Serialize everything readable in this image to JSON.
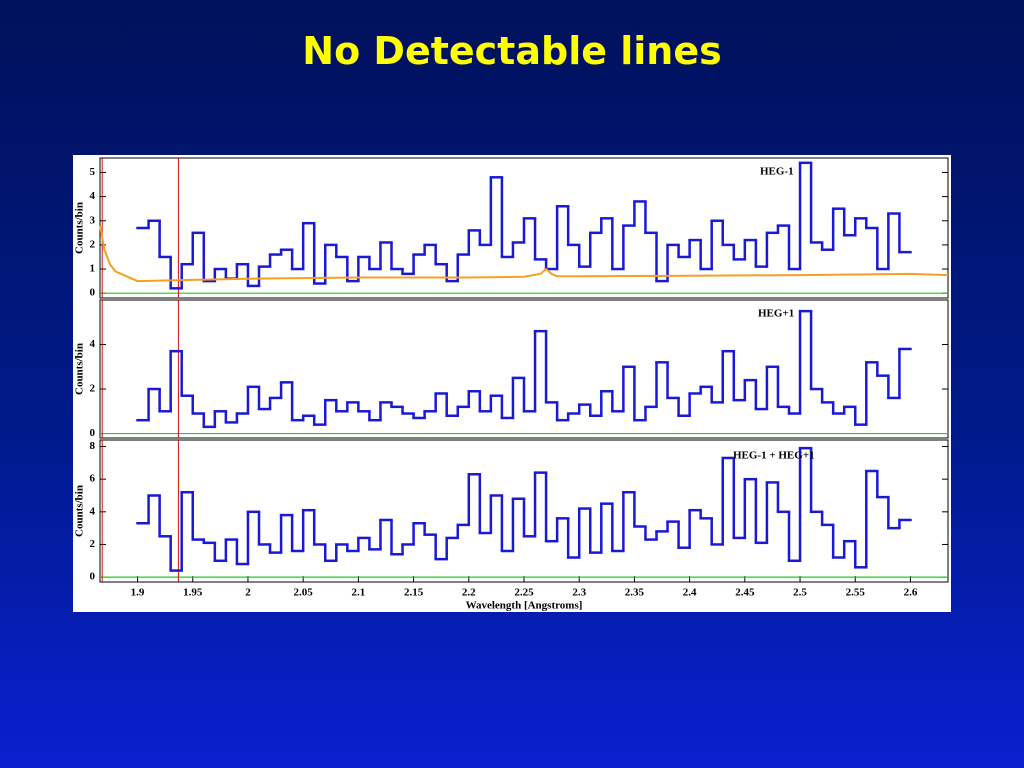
{
  "title": "No Detectable lines",
  "chart_data": [
    {
      "type": "histogram",
      "annotation": "HEG-1",
      "ylabel": "Counts/bin",
      "color": "#1a1ad6",
      "bins": [
        1.9,
        1.91,
        1.92,
        1.93,
        1.94,
        1.95,
        1.96,
        1.97,
        1.98,
        1.99,
        2,
        2.01,
        2.02,
        2.03,
        2.04,
        2.05,
        2.06,
        2.07,
        2.08,
        2.09,
        2.1,
        2.11,
        2.12,
        2.13,
        2.14,
        2.15,
        2.16,
        2.17,
        2.18,
        2.19,
        2.2,
        2.21,
        2.22,
        2.23,
        2.24,
        2.25,
        2.26,
        2.27,
        2.28,
        2.29,
        2.3,
        2.31,
        2.32,
        2.33,
        2.34,
        2.35,
        2.36,
        2.37,
        2.38,
        2.39,
        2.4,
        2.41,
        2.42,
        2.43,
        2.44,
        2.45,
        2.46,
        2.47,
        2.48,
        2.49,
        2.5,
        2.51,
        2.52,
        2.53,
        2.54,
        2.55,
        2.56,
        2.57,
        2.58,
        2.59,
        2.6
      ],
      "values": [
        2.7,
        3.0,
        1.5,
        0.2,
        1.2,
        2.5,
        0.5,
        1.0,
        0.6,
        1.2,
        0.3,
        1.1,
        1.6,
        1.8,
        1.0,
        2.9,
        0.4,
        2.0,
        1.5,
        0.5,
        1.5,
        1.0,
        2.1,
        1.0,
        0.8,
        1.6,
        2.0,
        1.2,
        0.5,
        1.6,
        2.6,
        2.0,
        4.8,
        1.5,
        2.1,
        3.1,
        1.4,
        1.0,
        3.6,
        2.0,
        1.1,
        2.5,
        3.1,
        1.0,
        2.8,
        3.8,
        2.5,
        0.5,
        2.0,
        1.5,
        2.2,
        1.0,
        3.0,
        2.0,
        1.4,
        2.2,
        1.1,
        2.5,
        2.8,
        1.0,
        5.4,
        2.1,
        1.8,
        3.5,
        2.4,
        3.1,
        2.7,
        1.0,
        3.3,
        1.7
      ],
      "model": {
        "color": "#f5a020",
        "x": [
          1.866,
          1.87,
          1.875,
          1.88,
          1.89,
          1.9,
          1.95,
          2,
          2.1,
          2.2,
          2.25,
          2.265,
          2.27,
          2.275,
          2.28,
          2.3,
          2.4,
          2.5,
          2.6,
          2.634
        ],
        "values": [
          2.8,
          1.8,
          1.2,
          0.9,
          0.7,
          0.5,
          0.55,
          0.6,
          0.65,
          0.65,
          0.68,
          0.8,
          1.0,
          0.8,
          0.7,
          0.7,
          0.72,
          0.75,
          0.8,
          0.75
        ]
      },
      "vlines": {
        "color": "#d01010",
        "x": [
          1.868,
          1.937
        ]
      },
      "xlim": [
        1.866,
        2.634
      ],
      "ylim": [
        -0.2,
        5.6
      ],
      "yticks": [
        0,
        1,
        2,
        3,
        4,
        5
      ]
    },
    {
      "type": "histogram",
      "annotation": "HEG+1",
      "ylabel": "Counts/bin",
      "color": "#1a1ad6",
      "bins": [
        1.9,
        1.91,
        1.92,
        1.93,
        1.94,
        1.95,
        1.96,
        1.97,
        1.98,
        1.99,
        2,
        2.01,
        2.02,
        2.03,
        2.04,
        2.05,
        2.06,
        2.07,
        2.08,
        2.09,
        2.1,
        2.11,
        2.12,
        2.13,
        2.14,
        2.15,
        2.16,
        2.17,
        2.18,
        2.19,
        2.2,
        2.21,
        2.22,
        2.23,
        2.24,
        2.25,
        2.26,
        2.27,
        2.28,
        2.29,
        2.3,
        2.31,
        2.32,
        2.33,
        2.34,
        2.35,
        2.36,
        2.37,
        2.38,
        2.39,
        2.4,
        2.41,
        2.42,
        2.43,
        2.44,
        2.45,
        2.46,
        2.47,
        2.48,
        2.49,
        2.5,
        2.51,
        2.52,
        2.53,
        2.54,
        2.55,
        2.56,
        2.57,
        2.58,
        2.59,
        2.6
      ],
      "values": [
        0.6,
        2.0,
        1.0,
        3.7,
        1.7,
        0.9,
        0.3,
        1.0,
        0.5,
        0.9,
        2.1,
        1.1,
        1.6,
        2.3,
        0.6,
        0.8,
        0.4,
        1.5,
        1.0,
        1.4,
        1.0,
        0.6,
        1.4,
        1.2,
        0.9,
        0.7,
        1.0,
        1.8,
        0.8,
        1.2,
        1.9,
        1.0,
        1.7,
        0.7,
        2.5,
        1.0,
        4.6,
        1.4,
        0.6,
        0.9,
        1.3,
        0.8,
        1.9,
        1.0,
        3.0,
        0.6,
        1.2,
        3.2,
        1.6,
        0.8,
        1.8,
        2.1,
        1.4,
        3.7,
        1.5,
        2.4,
        1.1,
        3.0,
        1.2,
        0.9,
        5.5,
        2.0,
        1.4,
        0.9,
        1.2,
        0.4,
        3.2,
        2.6,
        1.6,
        3.8
      ],
      "vlines": {
        "color": "#d01010",
        "x": [
          1.868,
          1.937
        ]
      },
      "xlim": [
        1.866,
        2.634
      ],
      "ylim": [
        -0.2,
        6
      ],
      "yticks": [
        0,
        2,
        4
      ]
    },
    {
      "type": "histogram",
      "annotation": "HEG-1 + HEG+1",
      "ylabel": "Counts/bin",
      "xlabel": "Wavelength [Angstroms]",
      "color": "#1a1ad6",
      "bins": [
        1.9,
        1.91,
        1.92,
        1.93,
        1.94,
        1.95,
        1.96,
        1.97,
        1.98,
        1.99,
        2,
        2.01,
        2.02,
        2.03,
        2.04,
        2.05,
        2.06,
        2.07,
        2.08,
        2.09,
        2.1,
        2.11,
        2.12,
        2.13,
        2.14,
        2.15,
        2.16,
        2.17,
        2.18,
        2.19,
        2.2,
        2.21,
        2.22,
        2.23,
        2.24,
        2.25,
        2.26,
        2.27,
        2.28,
        2.29,
        2.3,
        2.31,
        2.32,
        2.33,
        2.34,
        2.35,
        2.36,
        2.37,
        2.38,
        2.39,
        2.4,
        2.41,
        2.42,
        2.43,
        2.44,
        2.45,
        2.46,
        2.47,
        2.48,
        2.49,
        2.5,
        2.51,
        2.52,
        2.53,
        2.54,
        2.55,
        2.56,
        2.57,
        2.58,
        2.59,
        2.6
      ],
      "values": [
        3.3,
        5.0,
        2.5,
        0.4,
        5.2,
        2.3,
        2.1,
        1.0,
        2.3,
        0.8,
        4.0,
        2.0,
        1.5,
        3.8,
        1.6,
        4.1,
        2.0,
        1.0,
        2.0,
        1.6,
        2.4,
        1.7,
        3.5,
        1.4,
        2.0,
        3.3,
        2.6,
        1.1,
        2.4,
        3.2,
        6.3,
        2.7,
        5.0,
        1.6,
        4.8,
        2.5,
        6.4,
        2.2,
        3.6,
        1.2,
        4.2,
        1.5,
        4.5,
        1.6,
        5.2,
        3.1,
        2.3,
        2.8,
        3.4,
        1.8,
        4.1,
        3.6,
        2.0,
        7.3,
        2.4,
        6.0,
        2.1,
        5.8,
        4.0,
        1.0,
        7.9,
        4.0,
        3.2,
        1.2,
        2.2,
        0.6,
        6.5,
        4.9,
        3.0,
        3.5
      ],
      "vlines": {
        "color": "#d01010",
        "x": [
          1.868,
          1.937
        ]
      },
      "xlim": [
        1.866,
        2.634
      ],
      "ylim": [
        -0.3,
        8.4
      ],
      "yticks": [
        0,
        2,
        4,
        6,
        8
      ],
      "xticks": [
        1.9,
        1.95,
        2,
        2.05,
        2.1,
        2.15,
        2.2,
        2.25,
        2.3,
        2.35,
        2.4,
        2.45,
        2.5,
        2.55,
        2.6
      ]
    }
  ]
}
